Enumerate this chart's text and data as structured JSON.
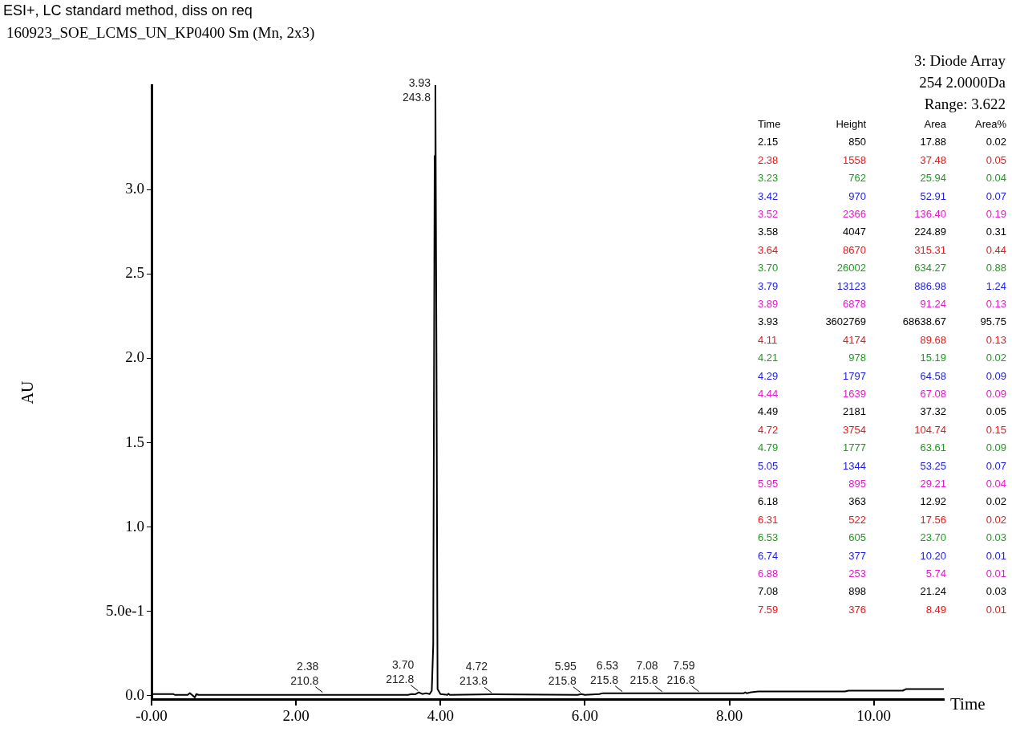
{
  "chart_data": {
    "type": "line",
    "title": "ESI+, LC standard method, diss on req",
    "subtitle": "160923_SOE_LCMS_UN_KP0400 Sm (Mn, 2x3)",
    "xlabel": "Time",
    "ylabel": "AU",
    "grid": false,
    "legend": false,
    "marker": "none",
    "line_style": "solid",
    "xlim": [
      0,
      10.97
    ],
    "ylim": [
      -0.02,
      3.62
    ],
    "xticks": [
      {
        "value": 0,
        "label": "-0.00"
      },
      {
        "value": 2,
        "label": "2.00"
      },
      {
        "value": 4,
        "label": "4.00"
      },
      {
        "value": 6,
        "label": "6.00"
      },
      {
        "value": 8,
        "label": "8.00"
      },
      {
        "value": 10,
        "label": "10.00"
      }
    ],
    "yticks": [
      {
        "value": 0,
        "label": "0.0"
      },
      {
        "value": 0.5,
        "label": "5.0e-1"
      },
      {
        "value": 1,
        "label": "1.0"
      },
      {
        "value": 1.5,
        "label": "1.5"
      },
      {
        "value": 2,
        "label": "2.0"
      },
      {
        "value": 2.5,
        "label": "2.5"
      },
      {
        "value": 3,
        "label": "3.0"
      }
    ],
    "series": [
      {
        "color": "#000000",
        "x": [
          0,
          0.3,
          0.32,
          0.5,
          0.53,
          0.56,
          0.6,
          0.62,
          0.65,
          3.55,
          3.6,
          3.65,
          3.7,
          3.75,
          3.8,
          3.85,
          3.88,
          3.9,
          3.92,
          3.93,
          3.945,
          3.96,
          4.0,
          4.1,
          4.11,
          4.13,
          4.72,
          5.9,
          5.95,
          6.0,
          6.2,
          6.25,
          8.2,
          8.22,
          8.24,
          8.3,
          8.4,
          9.6,
          9.65,
          10.4,
          10.45,
          10.97
        ],
        "values": [
          0.01,
          0.01,
          0.005,
          0.005,
          0.015,
          0.005,
          -0.01,
          0.01,
          0.005,
          0.005,
          0.01,
          0.008,
          0.02,
          0.01,
          0.015,
          0.01,
          0.03,
          0.3,
          3.2,
          3.62,
          2.0,
          0.04,
          0.01,
          0.005,
          0.012,
          0.005,
          0.008,
          0.005,
          0.01,
          0.005,
          0.01,
          0.015,
          0.015,
          0.02,
          0.015,
          0.02,
          0.025,
          0.025,
          0.03,
          0.03,
          0.04,
          0.04
        ]
      }
    ],
    "annotations": [
      "3: Diode Array",
      "254 2.0000Da",
      "Range: 3.622",
      {
        "text": "3.93\n243.8",
        "x": 3.93,
        "y": 3.62
      },
      {
        "text": "2.38\n210.8",
        "x": 2.38,
        "y": 0.01
      },
      {
        "text": "3.70\n212.8",
        "x": 3.7,
        "y": 0.02
      },
      {
        "text": "4.72\n213.8",
        "x": 4.72,
        "y": 0.008
      },
      {
        "text": "5.95\n215.8",
        "x": 5.95,
        "y": 0.01
      },
      {
        "text": "6.53\n215.8",
        "x": 6.53,
        "y": 0.015
      },
      {
        "text": "7.08\n215.8",
        "x": 7.08,
        "y": 0.015
      },
      {
        "text": "7.59\n216.8",
        "x": 7.59,
        "y": 0.015
      },
      "Time",
      "Height",
      "Area",
      "Area%",
      "2.15",
      "850",
      "17.88",
      "0.02",
      "2.38",
      "1558",
      "37.48",
      "0.05",
      "3.23",
      "762",
      "25.94",
      "0.04",
      "3.42",
      "970",
      "52.91",
      "0.07",
      "3.52",
      "2366",
      "136.40",
      "0.19",
      "3.58",
      "4047",
      "224.89",
      "0.31",
      "3.64",
      "8670",
      "315.31",
      "0.44",
      "3.70",
      "26002",
      "634.27",
      "0.88",
      "3.79",
      "13123",
      "886.98",
      "1.24",
      "3.89",
      "6878",
      "91.24",
      "0.13",
      "3.93",
      "3602769",
      "68638.67",
      "95.75",
      "4.11",
      "4174",
      "89.68",
      "0.13",
      "4.21",
      "978",
      "15.19",
      "0.02",
      "4.29",
      "1797",
      "64.58",
      "0.09",
      "4.44",
      "1639",
      "67.08",
      "0.09",
      "4.49",
      "2181",
      "37.32",
      "0.05",
      "4.72",
      "3754",
      "104.74",
      "0.15",
      "4.79",
      "1777",
      "63.61",
      "0.09",
      "5.05",
      "1344",
      "53.25",
      "0.07",
      "5.95",
      "895",
      "29.21",
      "0.04",
      "6.18",
      "363",
      "12.92",
      "0.02",
      "6.31",
      "522",
      "17.56",
      "0.02",
      "6.53",
      "605",
      "23.70",
      "0.03",
      "6.74",
      "377",
      "10.20",
      "0.01",
      "6.88",
      "253",
      "5.74",
      "0.01",
      "7.08",
      "898",
      "21.24",
      "0.03",
      "7.59",
      "376",
      "8.49",
      "0.01"
    ]
  }
}
